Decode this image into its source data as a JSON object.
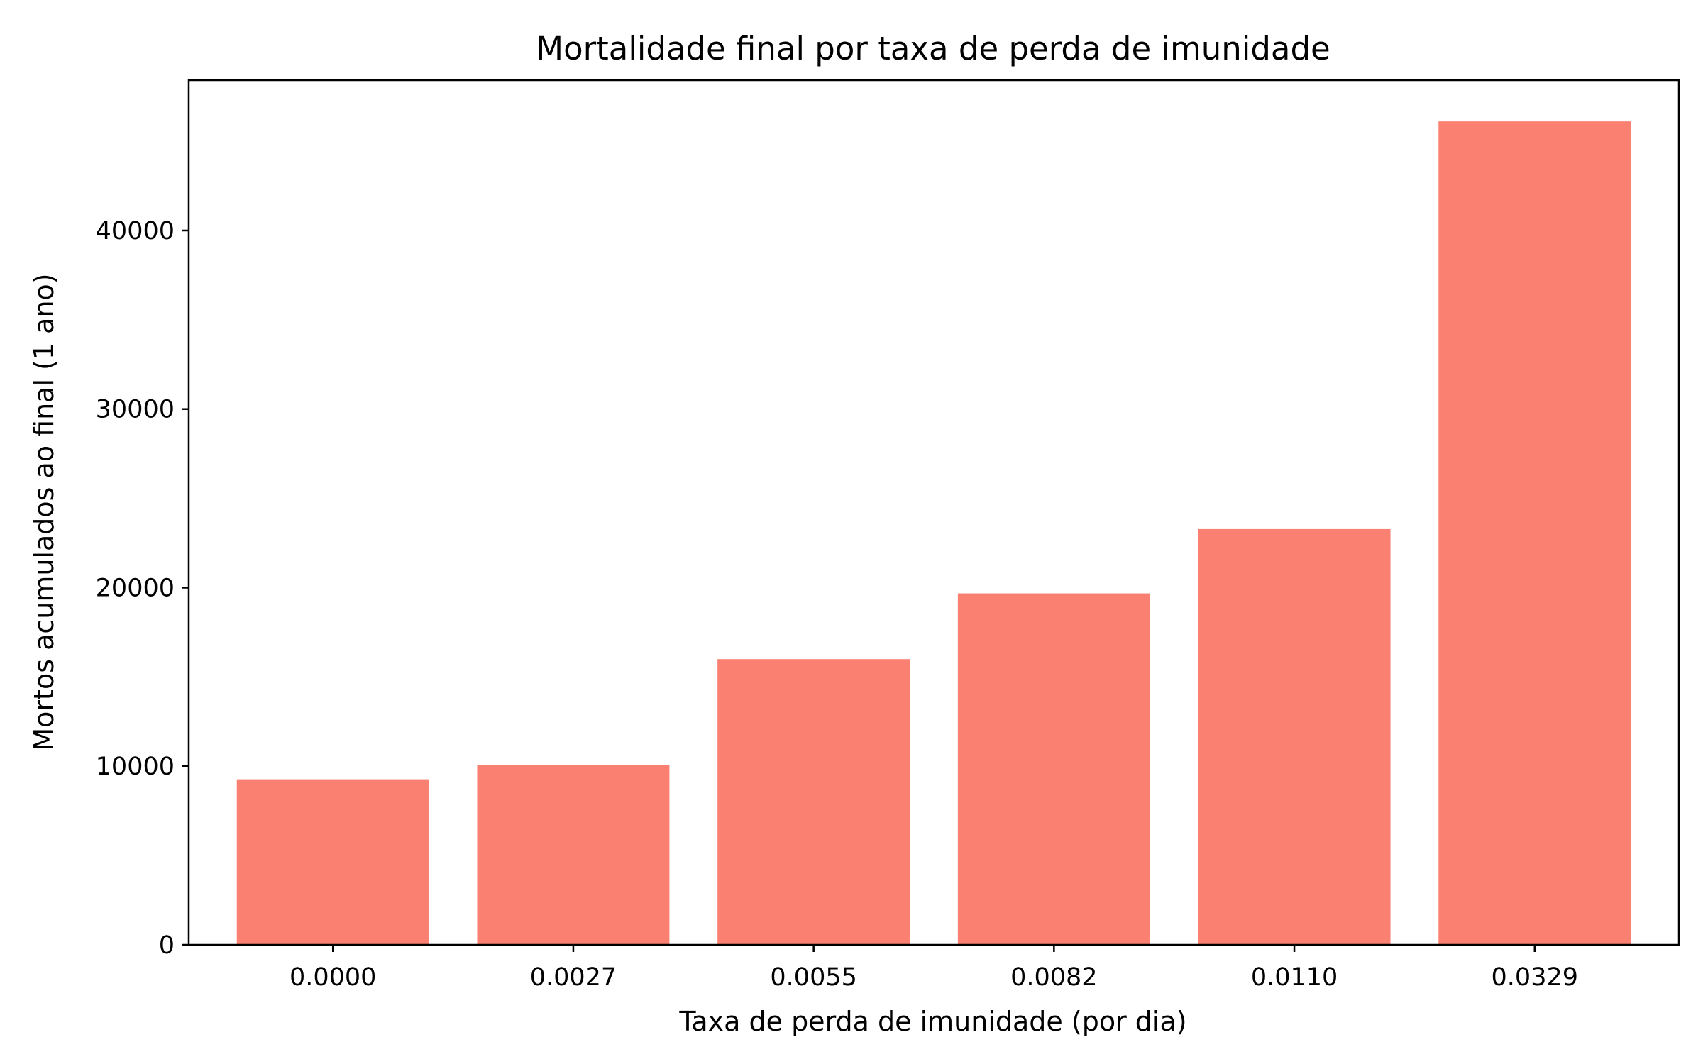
{
  "chart_data": {
    "type": "bar",
    "title": "Mortalidade final por taxa de perda de imunidade",
    "xlabel": "Taxa de perda de imunidade (por dia)",
    "ylabel": "Mortos acumulados ao final (1 ano)",
    "categories": [
      "0.0000",
      "0.0027",
      "0.0055",
      "0.0082",
      "0.0110",
      "0.0329"
    ],
    "values": [
      9270,
      10080,
      16000,
      19680,
      23280,
      46110
    ],
    "ylim": [
      0,
      48420
    ],
    "yticks": [
      0,
      10000,
      20000,
      30000,
      40000
    ],
    "bar_color": "#fa8072",
    "grid": false,
    "legend": "none"
  }
}
